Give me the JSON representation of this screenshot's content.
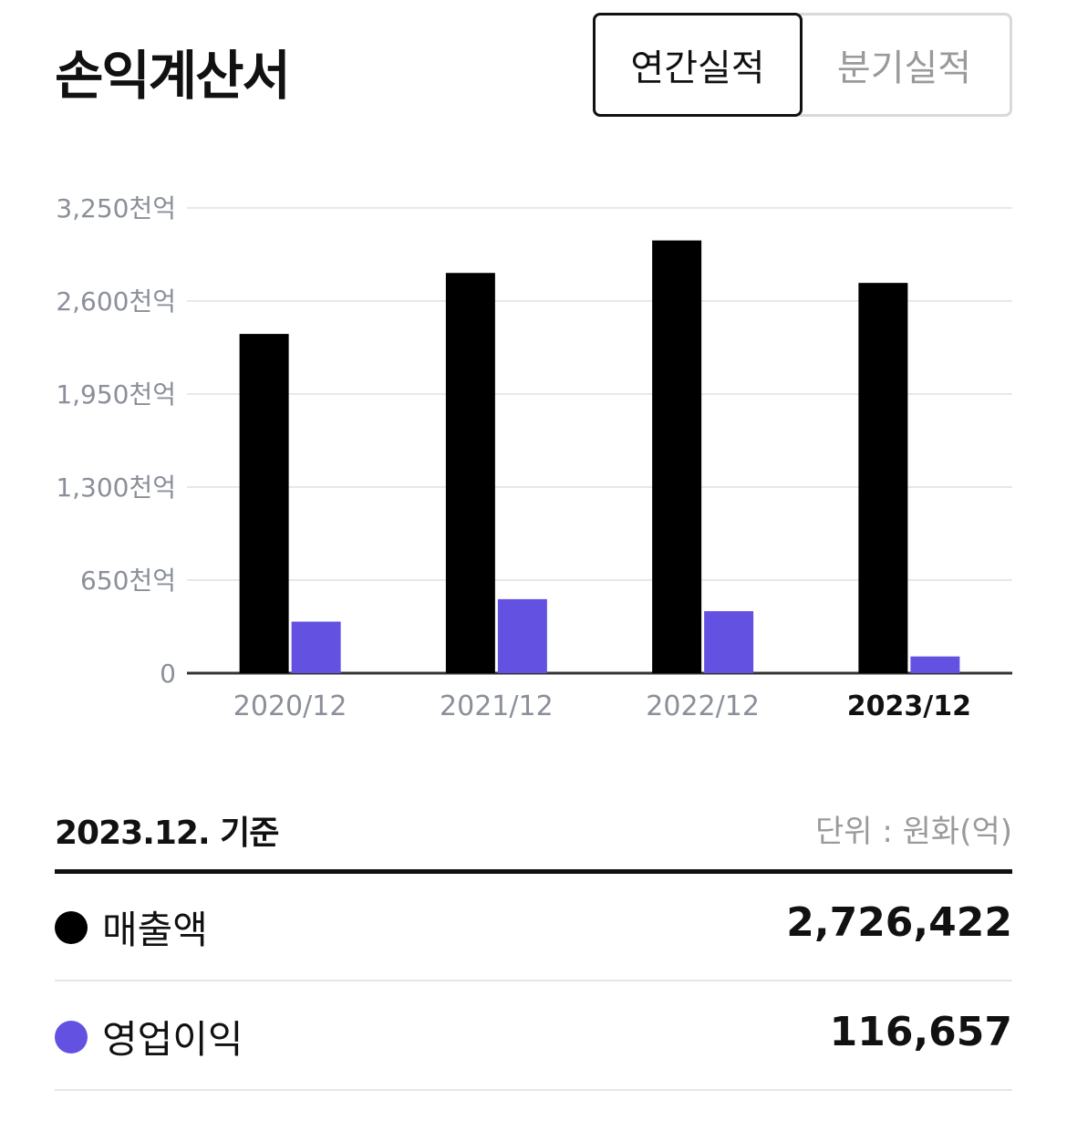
{
  "page": {
    "title": "손익계산서"
  },
  "toggle": {
    "annual": "연간실적",
    "quarterly": "분기실적"
  },
  "chart_data": {
    "type": "bar",
    "categories": [
      "2020/12",
      "2021/12",
      "2022/12",
      "2023/12"
    ],
    "highlight_category": "2023/12",
    "series": [
      {
        "name": "매출액",
        "color": "#000000",
        "values": [
          2370000,
          2796000,
          3023000,
          2726422
        ]
      },
      {
        "name": "영업이익",
        "color": "#6352e1",
        "values": [
          360000,
          517000,
          433000,
          116657
        ]
      }
    ],
    "y_ticks": [
      "0",
      "650천억",
      "1,300천억",
      "1,950천억",
      "2,600천억",
      "3,250천억"
    ],
    "ylim": [
      0,
      3250000
    ],
    "grid": true
  },
  "summary": {
    "as_of": "2023.12. 기준",
    "unit": "단위 : 원화(억)",
    "rows": [
      {
        "label": "매출액",
        "value": "2,726,422",
        "color": "#000000"
      },
      {
        "label": "영업이익",
        "value": "116,657",
        "color": "#6352e1"
      }
    ]
  }
}
